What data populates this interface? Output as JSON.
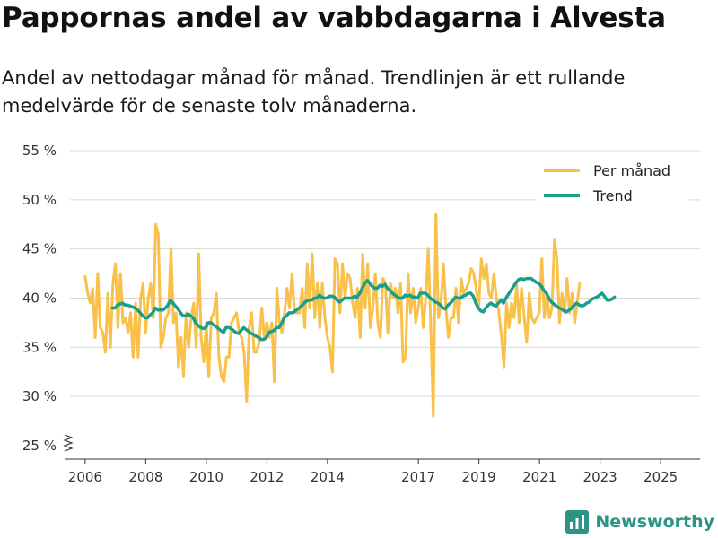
{
  "title": "Pappornas andel av vabbdagarna i Alvesta",
  "subtitle": "Andel av nettodagar månad för månad. Trendlinjen är ett rullande medelvärde för de senaste tolv månaderna.",
  "brand": "Newsworthy",
  "colors": {
    "per_month": "#f9c04a",
    "trend": "#1a9e8c",
    "grid": "#d9d9d9",
    "axis": "#333333"
  },
  "chart_data": {
    "type": "line",
    "y_unit": "%",
    "ylim": [
      25,
      55
    ],
    "y_ticks": [
      25,
      30,
      35,
      40,
      45,
      50,
      55
    ],
    "y_tick_labels": [
      "25 %",
      "30 %",
      "35 %",
      "40 %",
      "45 %",
      "50 %",
      "55 %"
    ],
    "y_axis_break": true,
    "xlim": [
      2005.5,
      2026.3
    ],
    "x_ticks": [
      2006,
      2008,
      2010,
      2012,
      2014,
      2017,
      2019,
      2021,
      2023,
      2025
    ],
    "x_tick_labels": [
      "2006",
      "2008",
      "2010",
      "2012",
      "2014",
      "2017",
      "2019",
      "2021",
      "2023",
      "2025"
    ],
    "legend": {
      "position": "top-right",
      "entries": [
        "Per månad",
        "Trend"
      ]
    },
    "series": [
      {
        "name": "Per månad",
        "x_start": 2006.0,
        "x_step": 0.0833,
        "values": [
          42.2,
          40.5,
          39.5,
          41,
          36,
          42.5,
          37,
          36.5,
          34.5,
          40.5,
          35,
          41.5,
          43.5,
          37,
          42.5,
          37.5,
          38,
          36.5,
          38.5,
          34,
          39.5,
          34,
          40,
          41.5,
          36.5,
          40,
          41.5,
          38,
          47.5,
          46.5,
          35,
          36,
          38,
          38.5,
          45,
          37.5,
          38.5,
          33,
          36,
          32,
          38.5,
          35,
          38,
          39.5,
          35,
          44.5,
          36,
          33.5,
          37.5,
          32,
          38,
          38.5,
          40.5,
          34,
          32,
          31.5,
          34,
          34,
          37.5,
          38,
          38.5,
          36.5,
          36,
          34.5,
          29.5,
          37,
          38.5,
          34.5,
          34.5,
          35.5,
          39,
          36,
          37.5,
          36,
          37.5,
          31.5,
          41,
          37.5,
          36.5,
          38.5,
          41,
          39,
          42.5,
          38.5,
          38.5,
          38.5,
          41,
          37,
          43.5,
          39,
          44.5,
          38,
          41.5,
          37,
          41.5,
          38,
          36,
          35,
          32.5,
          44,
          43.5,
          38.5,
          43.5,
          40,
          42.5,
          42,
          39.5,
          38,
          41,
          36,
          44.5,
          39,
          43.5,
          37,
          39,
          42.5,
          37.5,
          36,
          42,
          41.5,
          36.5,
          41.5,
          40,
          41,
          38.5,
          41.5,
          33.5,
          34,
          42.5,
          38.5,
          41,
          37.5,
          39,
          41,
          37,
          40,
          45,
          37,
          28,
          48.5,
          38,
          39.5,
          43.5,
          39,
          36,
          38,
          38,
          41,
          37.5,
          42,
          40.5,
          41,
          41.5,
          43,
          42.5,
          41,
          39,
          44,
          42,
          43.5,
          40.5,
          40,
          42.5,
          40,
          38.5,
          36,
          33,
          39.5,
          37,
          39.5,
          38,
          41.5,
          37.5,
          41,
          38,
          35.5,
          40.5,
          38,
          37.5,
          38,
          38.5,
          44,
          38,
          40.5,
          38,
          39,
          46,
          44,
          37.5,
          40.5,
          38.5,
          42,
          38.5,
          40.5,
          37.5,
          39.5,
          41.5
        ]
      },
      {
        "name": "Trend",
        "x_start": 2006.9,
        "x_step": 0.0833,
        "values": [
          39,
          39,
          39.3,
          39.4,
          39.5,
          39.3,
          39.3,
          39.2,
          39.1,
          39,
          38.8,
          38.5,
          38.2,
          38,
          38,
          38.3,
          38.5,
          39,
          38.8,
          38.8,
          38.8,
          39,
          39.3,
          39.8,
          39.5,
          39.2,
          38.9,
          38.5,
          38.2,
          38.2,
          38.4,
          38.2,
          38,
          37.5,
          37.2,
          37,
          36.9,
          37,
          37.5,
          37.5,
          37.3,
          37.1,
          36.9,
          36.7,
          36.5,
          37,
          37,
          36.9,
          36.7,
          36.5,
          36.4,
          36.7,
          37,
          36.8,
          36.6,
          36.4,
          36.3,
          36.1,
          36,
          35.8,
          35.8,
          36,
          36.5,
          36.6,
          36.7,
          37,
          37,
          37.4,
          38,
          38.2,
          38.5,
          38.5,
          38.6,
          38.8,
          39,
          39.2,
          39.5,
          39.7,
          39.8,
          39.8,
          40,
          40,
          40.3,
          40.1,
          40,
          40,
          40.2,
          40.2,
          40.1,
          39.8,
          39.6,
          39.8,
          40,
          40,
          40,
          40,
          40.2,
          40.1,
          40.5,
          41,
          41.5,
          41.8,
          41.5,
          41.2,
          41,
          41,
          41.3,
          41.2,
          41.4,
          41,
          40.8,
          40.5,
          40.3,
          40.1,
          40,
          40,
          40.3,
          40.2,
          40.3,
          40.1,
          40.1,
          40,
          40.5,
          40.5,
          40.5,
          40.3,
          40,
          39.8,
          39.6,
          39.5,
          39.3,
          39,
          38.9,
          39.3,
          39.5,
          39.8,
          40.1,
          40,
          40,
          40.2,
          40.3,
          40.5,
          40.5,
          40.2,
          39.5,
          39,
          38.7,
          38.6,
          39,
          39.3,
          39.5,
          39.3,
          39.2,
          39.5,
          39.8,
          39.5,
          40,
          40.4,
          40.8,
          41.2,
          41.6,
          41.9,
          42,
          41.9,
          42,
          42,
          42,
          41.8,
          41.6,
          41.5,
          41.2,
          40.8,
          40.5,
          40,
          39.6,
          39.4,
          39.2,
          39,
          38.9,
          38.7,
          38.6,
          38.8,
          39,
          39.3,
          39.5,
          39.3,
          39.2,
          39.3,
          39.5,
          39.6,
          39.9,
          40,
          40.1,
          40.3,
          40.5,
          40.2,
          39.8,
          39.8,
          39.9,
          40.1
        ]
      }
    ]
  }
}
